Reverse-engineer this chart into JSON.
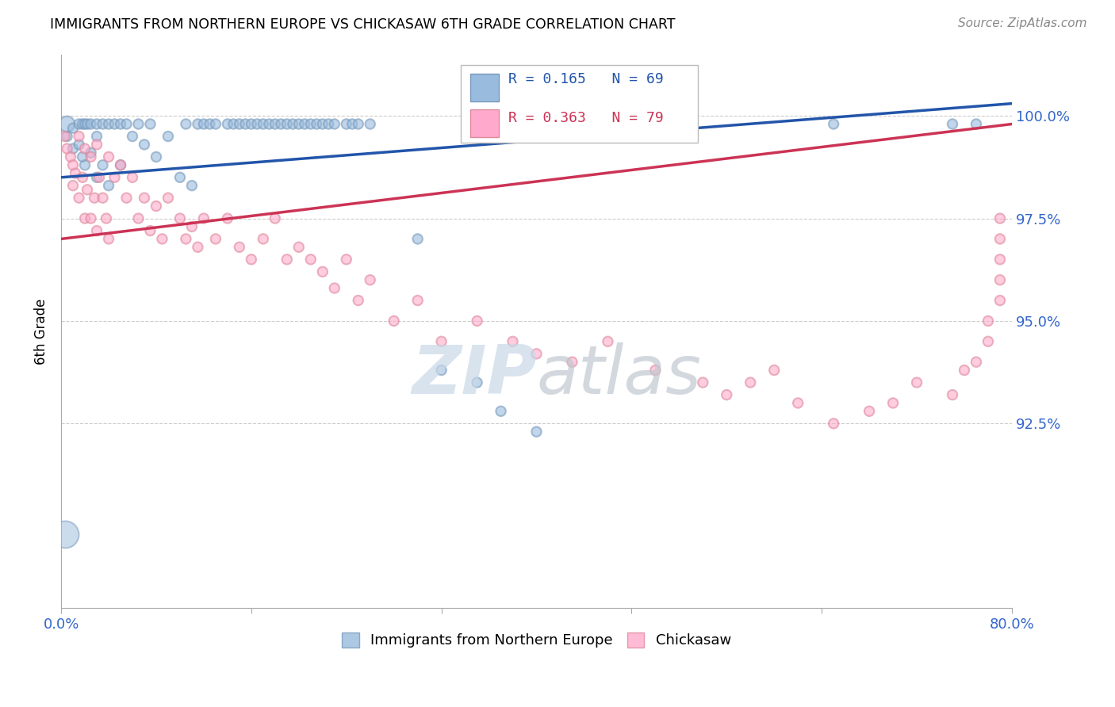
{
  "title": "IMMIGRANTS FROM NORTHERN EUROPE VS CHICKASAW 6TH GRADE CORRELATION CHART",
  "source": "Source: ZipAtlas.com",
  "ylabel_label": "6th Grade",
  "watermark": "ZIPatlas",
  "xlim": [
    0.0,
    0.8
  ],
  "ylim": [
    88.0,
    101.5
  ],
  "xtick_positions": [
    0.0,
    0.16,
    0.32,
    0.48,
    0.64,
    0.8
  ],
  "xtick_labels": [
    "0.0%",
    "",
    "",
    "",
    "",
    "80.0%"
  ],
  "ytick_positions": [
    92.5,
    95.0,
    97.5,
    100.0
  ],
  "ytick_labels": [
    "92.5%",
    "95.0%",
    "97.5%",
    "100.0%"
  ],
  "blue_R": 0.165,
  "blue_N": 69,
  "pink_R": 0.363,
  "pink_N": 79,
  "blue_color": "#99BBDD",
  "pink_color": "#FFAACC",
  "blue_edge_color": "#7799BB",
  "pink_edge_color": "#DD8899",
  "blue_line_color": "#2255AA",
  "pink_line_color": "#CC3355",
  "grid_color": "#CCCCCC",
  "blue_line_x0": 0.0,
  "blue_line_y0": 98.5,
  "blue_line_x1": 0.8,
  "blue_line_y1": 100.3,
  "pink_line_x0": 0.0,
  "pink_line_y0": 97.0,
  "pink_line_x1": 0.8,
  "pink_line_y1": 99.8,
  "blue_scatter_x": [
    0.005,
    0.005,
    0.01,
    0.01,
    0.015,
    0.015,
    0.018,
    0.018,
    0.02,
    0.02,
    0.022,
    0.025,
    0.025,
    0.03,
    0.03,
    0.03,
    0.035,
    0.035,
    0.04,
    0.04,
    0.045,
    0.05,
    0.05,
    0.055,
    0.06,
    0.065,
    0.07,
    0.075,
    0.08,
    0.09,
    0.1,
    0.105,
    0.11,
    0.115,
    0.12,
    0.125,
    0.13,
    0.14,
    0.145,
    0.15,
    0.155,
    0.16,
    0.165,
    0.17,
    0.175,
    0.18,
    0.185,
    0.19,
    0.195,
    0.2,
    0.205,
    0.21,
    0.215,
    0.22,
    0.225,
    0.23,
    0.24,
    0.245,
    0.25,
    0.26,
    0.3,
    0.32,
    0.35,
    0.37,
    0.4,
    0.5,
    0.65,
    0.75,
    0.77
  ],
  "blue_scatter_y": [
    99.8,
    99.5,
    99.7,
    99.2,
    99.8,
    99.3,
    99.8,
    99.0,
    99.8,
    98.8,
    99.8,
    99.8,
    99.1,
    99.8,
    99.5,
    98.5,
    99.8,
    98.8,
    99.8,
    98.3,
    99.8,
    99.8,
    98.8,
    99.8,
    99.5,
    99.8,
    99.3,
    99.8,
    99.0,
    99.5,
    98.5,
    99.8,
    98.3,
    99.8,
    99.8,
    99.8,
    99.8,
    99.8,
    99.8,
    99.8,
    99.8,
    99.8,
    99.8,
    99.8,
    99.8,
    99.8,
    99.8,
    99.8,
    99.8,
    99.8,
    99.8,
    99.8,
    99.8,
    99.8,
    99.8,
    99.8,
    99.8,
    99.8,
    99.8,
    99.8,
    97.0,
    93.8,
    93.5,
    92.8,
    92.3,
    99.8,
    99.8,
    99.8,
    99.8
  ],
  "blue_scatter_size": [
    200,
    80,
    80,
    80,
    80,
    80,
    80,
    80,
    80,
    80,
    80,
    80,
    80,
    80,
    80,
    80,
    80,
    80,
    80,
    80,
    80,
    80,
    80,
    80,
    80,
    80,
    80,
    80,
    80,
    80,
    80,
    80,
    80,
    80,
    80,
    80,
    80,
    80,
    80,
    80,
    80,
    80,
    80,
    80,
    80,
    80,
    80,
    80,
    80,
    80,
    80,
    80,
    80,
    80,
    80,
    80,
    80,
    80,
    80,
    80,
    80,
    80,
    80,
    80,
    80,
    80,
    80,
    80,
    80
  ],
  "pink_scatter_x": [
    0.003,
    0.005,
    0.008,
    0.01,
    0.01,
    0.012,
    0.015,
    0.015,
    0.018,
    0.02,
    0.02,
    0.022,
    0.025,
    0.025,
    0.028,
    0.03,
    0.03,
    0.032,
    0.035,
    0.038,
    0.04,
    0.04,
    0.045,
    0.05,
    0.055,
    0.06,
    0.065,
    0.07,
    0.075,
    0.08,
    0.085,
    0.09,
    0.1,
    0.105,
    0.11,
    0.115,
    0.12,
    0.13,
    0.14,
    0.15,
    0.16,
    0.17,
    0.18,
    0.19,
    0.2,
    0.21,
    0.22,
    0.23,
    0.24,
    0.25,
    0.26,
    0.28,
    0.3,
    0.32,
    0.35,
    0.38,
    0.4,
    0.43,
    0.46,
    0.5,
    0.54,
    0.56,
    0.58,
    0.6,
    0.62,
    0.65,
    0.68,
    0.7,
    0.72,
    0.75,
    0.76,
    0.77,
    0.78,
    0.78,
    0.79,
    0.79,
    0.79,
    0.79,
    0.79
  ],
  "pink_scatter_y": [
    99.5,
    99.2,
    99.0,
    98.8,
    98.3,
    98.6,
    99.5,
    98.0,
    98.5,
    99.2,
    97.5,
    98.2,
    99.0,
    97.5,
    98.0,
    99.3,
    97.2,
    98.5,
    98.0,
    97.5,
    99.0,
    97.0,
    98.5,
    98.8,
    98.0,
    98.5,
    97.5,
    98.0,
    97.2,
    97.8,
    97.0,
    98.0,
    97.5,
    97.0,
    97.3,
    96.8,
    97.5,
    97.0,
    97.5,
    96.8,
    96.5,
    97.0,
    97.5,
    96.5,
    96.8,
    96.5,
    96.2,
    95.8,
    96.5,
    95.5,
    96.0,
    95.0,
    95.5,
    94.5,
    95.0,
    94.5,
    94.2,
    94.0,
    94.5,
    93.8,
    93.5,
    93.2,
    93.5,
    93.8,
    93.0,
    92.5,
    92.8,
    93.0,
    93.5,
    93.2,
    93.8,
    94.0,
    94.5,
    95.0,
    95.5,
    96.0,
    96.5,
    97.0,
    97.5
  ],
  "pink_scatter_size": [
    80,
    80,
    80,
    80,
    80,
    80,
    80,
    80,
    80,
    80,
    80,
    80,
    80,
    80,
    80,
    80,
    80,
    80,
    80,
    80,
    80,
    80,
    80,
    80,
    80,
    80,
    80,
    80,
    80,
    80,
    80,
    80,
    80,
    80,
    80,
    80,
    80,
    80,
    80,
    80,
    80,
    80,
    80,
    80,
    80,
    80,
    80,
    80,
    80,
    80,
    80,
    80,
    80,
    80,
    80,
    80,
    80,
    80,
    80,
    80,
    80,
    80,
    80,
    80,
    80,
    80,
    80,
    80,
    80,
    80,
    80,
    80,
    80,
    80,
    80,
    80,
    80,
    80,
    80
  ]
}
